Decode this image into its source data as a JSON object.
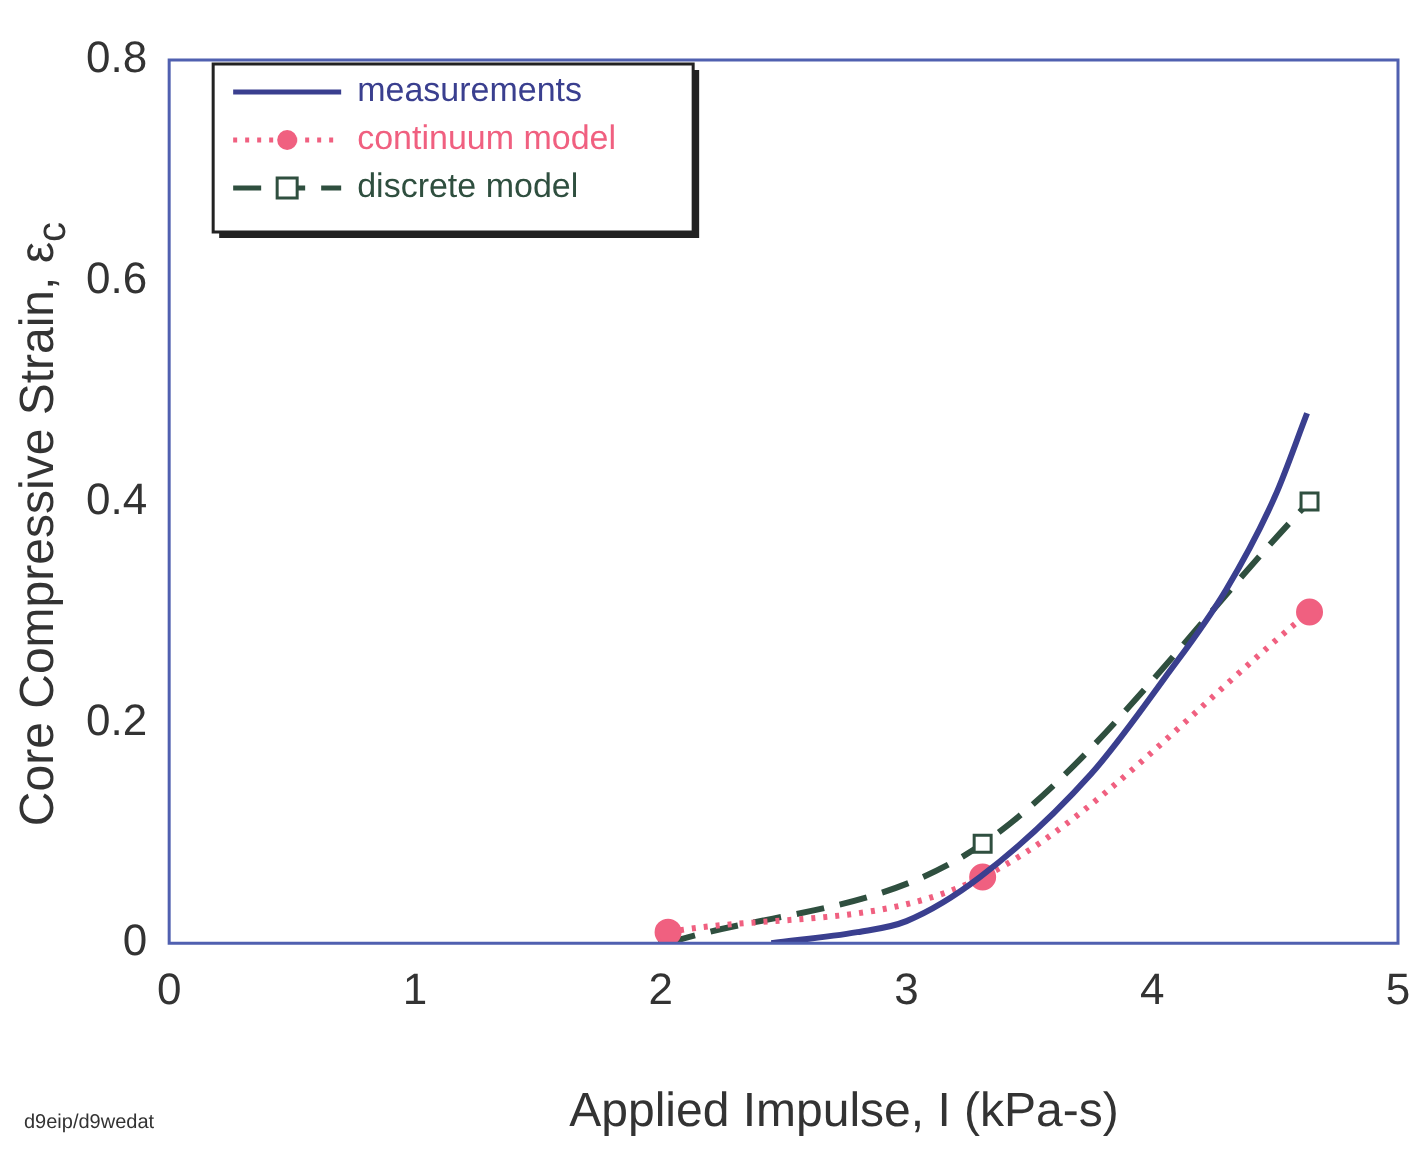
{
  "chart_data": {
    "type": "line",
    "xlabel": "Applied Impulse, I (kPa-s)",
    "ylabel": "Core Compressive Strain, ε$_{c}$",
    "xlim": [
      0,
      5
    ],
    "xticks": [
      0,
      1,
      2,
      3,
      4,
      5
    ],
    "ylim": [
      0,
      0.8
    ],
    "yticks": [
      {
        "value": 0,
        "label": "0"
      },
      0.2,
      0.4,
      0.6,
      0.8
    ],
    "grid": false,
    "legend": "top left",
    "annotations": [
      "d9eip/d9wedat"
    ],
    "series": [
      {
        "name": "measurements",
        "color": "#3a3f8f",
        "line_style": "solid",
        "marker": "none",
        "x": [
          2.45,
          2.8,
          3.0,
          3.3,
          3.75,
          4.05,
          4.3,
          4.5,
          4.63
        ],
        "values": [
          0,
          0.01,
          0.02,
          0.06,
          0.153,
          0.24,
          0.32,
          0.405,
          0.48
        ]
      },
      {
        "name": "continuum model",
        "color": "#f06080",
        "line_style": "dotted",
        "marker": "circle",
        "x": [
          2.03,
          3.31,
          4.64
        ],
        "values": [
          0.01,
          0.06,
          0.3
        ]
      },
      {
        "name": "discrete model",
        "color": "#2f4f3f",
        "line_style": "dashed",
        "marker": "square",
        "x": [
          2.03,
          3.31,
          4.64
        ],
        "values": [
          0,
          0.09,
          0.4
        ]
      }
    ]
  }
}
